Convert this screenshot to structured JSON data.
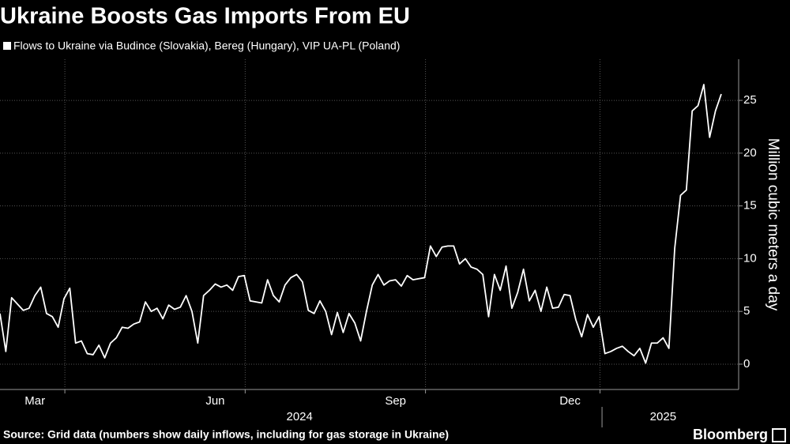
{
  "chart_data": {
    "type": "line",
    "title": "Ukraine Boosts Gas Imports From EU",
    "y_label": "Million cubic meters a day",
    "source": "Source: Grid data (numbers show daily inflows, including for gas storage in Ukraine)",
    "brand": "Bloomberg",
    "grid": true,
    "categories": [
      null,
      null,
      null,
      null,
      null,
      null,
      "Mar",
      null,
      null,
      null,
      null,
      null,
      null,
      null,
      null,
      null,
      null,
      null,
      null,
      null,
      null,
      null,
      null,
      null,
      null,
      null,
      null,
      null,
      null,
      null,
      null,
      null,
      null,
      null,
      null,
      null,
      null,
      "Jun",
      null,
      null,
      null,
      null,
      null,
      null,
      null,
      null,
      null,
      null,
      null,
      null,
      null,
      null,
      null,
      null,
      null,
      null,
      null,
      null,
      null,
      null,
      null,
      null,
      null,
      null,
      null,
      null,
      null,
      null,
      "Sep",
      null,
      null,
      null,
      null,
      null,
      null,
      null,
      null,
      null,
      null,
      null,
      null,
      null,
      null,
      null,
      null,
      null,
      null,
      null,
      null,
      null,
      null,
      null,
      null,
      null,
      null,
      null,
      null,
      null,
      "Dec",
      null,
      null,
      null,
      null,
      null,
      null,
      null,
      null,
      null,
      null,
      null,
      null,
      null,
      null,
      null,
      null,
      null,
      null,
      null,
      null,
      null,
      null,
      null,
      null,
      null,
      null
    ],
    "x_groups": [
      {
        "label": "2024",
        "count": 104
      },
      {
        "label": "2025",
        "count": 21
      }
    ],
    "series": [
      {
        "name": "Flows to Ukraine via Budince (Slovakia), Bereg (Hungary), VIP UA-PL (Poland)",
        "color": "#ffffff",
        "values": [
          4.8,
          1.2,
          6.3,
          5.7,
          5.1,
          5.3,
          6.5,
          7.3,
          4.8,
          4.5,
          3.5,
          6.2,
          7.2,
          2.0,
          2.2,
          1.0,
          0.9,
          1.8,
          0.6,
          2.0,
          2.5,
          3.5,
          3.4,
          3.8,
          4.0,
          5.9,
          5.0,
          5.3,
          4.3,
          5.6,
          5.2,
          5.4,
          6.5,
          5.0,
          2.0,
          6.5,
          7.0,
          7.6,
          7.3,
          7.5,
          7.0,
          8.3,
          8.4,
          6.0,
          5.9,
          5.8,
          8.0,
          6.5,
          5.9,
          7.5,
          8.2,
          8.5,
          7.8,
          5.1,
          4.8,
          6.0,
          5.0,
          2.8,
          4.9,
          3.0,
          4.8,
          3.9,
          2.2,
          5.0,
          7.5,
          8.5,
          7.5,
          7.9,
          8.0,
          7.4,
          8.4,
          8.0,
          8.1,
          8.2,
          11.2,
          10.2,
          11.1,
          11.2,
          11.2,
          9.5,
          10.0,
          9.2,
          9.0,
          8.5,
          4.5,
          8.5,
          7.0,
          9.3,
          5.3,
          6.8,
          9.0,
          6.0,
          7.0,
          5.0,
          7.3,
          5.3,
          5.4,
          6.6,
          6.5,
          4.2,
          2.6,
          4.7,
          3.5,
          4.5,
          1.0,
          1.2,
          1.5,
          1.7,
          1.2,
          0.8,
          1.5,
          0.1,
          2.0,
          2.0,
          2.5,
          1.5,
          11.0,
          16.0,
          16.5,
          24.0,
          24.5,
          26.5,
          21.5,
          24.0,
          25.6
        ]
      }
    ],
    "ylim": [
      -2.4,
      28.9
    ],
    "yticks": [
      0,
      5,
      10,
      15,
      20,
      25
    ]
  }
}
